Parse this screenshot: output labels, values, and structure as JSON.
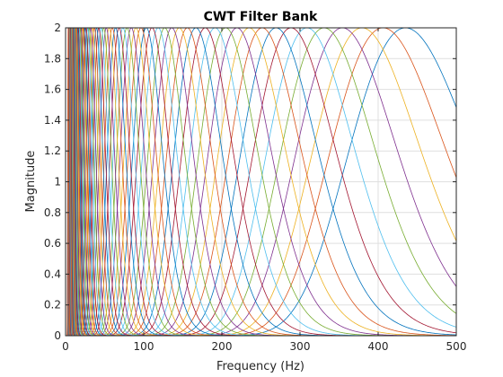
{
  "chart_data": {
    "type": "line",
    "title": "CWT Filter Bank",
    "xlabel": "Frequency (Hz)",
    "ylabel": "Magnitude",
    "xlim": [
      0,
      500
    ],
    "ylim": [
      0,
      2
    ],
    "grid": true,
    "legend": "none",
    "x_ticks": [
      "0",
      "100",
      "200",
      "300",
      "400",
      "500"
    ],
    "y_ticks": [
      "0",
      "0.2",
      "0.4",
      "0.6",
      "0.8",
      "1",
      "1.2",
      "1.4",
      "1.6",
      "1.8",
      "2"
    ],
    "x_tick_values": [
      0,
      100,
      200,
      300,
      400,
      500
    ],
    "y_tick_values": [
      0,
      0.2,
      0.4,
      0.6,
      0.8,
      1,
      1.2,
      1.4,
      1.6,
      1.8,
      2
    ],
    "peak_magnitude": 2,
    "series_peak_frequencies_hz": [
      435,
      406.2,
      379.3,
      354.2,
      330.8,
      308.9,
      288.5,
      269.4,
      251.6,
      234.9,
      219.4,
      204.9,
      191.3,
      178.7,
      166.8,
      155.8,
      145.5,
      135.9,
      126.9,
      118.5,
      110.6,
      103.3,
      96.5,
      90.1,
      84.1,
      78.6,
      73.4,
      68.5,
      64.0,
      59.8,
      55.8,
      52.1,
      48.7,
      45.5,
      42.5,
      39.6,
      37.0,
      34.6,
      32.3,
      30.1,
      28.2,
      26.3,
      24.5,
      22.9,
      21.4,
      20.0,
      18.7,
      17.4,
      16.3,
      15.2,
      14.2,
      13.3,
      12.4,
      11.6,
      10.8,
      10.1,
      9.4,
      8.8,
      8.2,
      7.7,
      7.2,
      6.7,
      6.3,
      5.8,
      5.5,
      5.1,
      4.8,
      4.4,
      4.2,
      3.9,
      3.6,
      3.4
    ],
    "series_colors": [
      "#0072bd",
      "#d95319",
      "#edb120",
      "#7e2f8e",
      "#77ac30",
      "#4dbeee",
      "#a2142f"
    ]
  }
}
